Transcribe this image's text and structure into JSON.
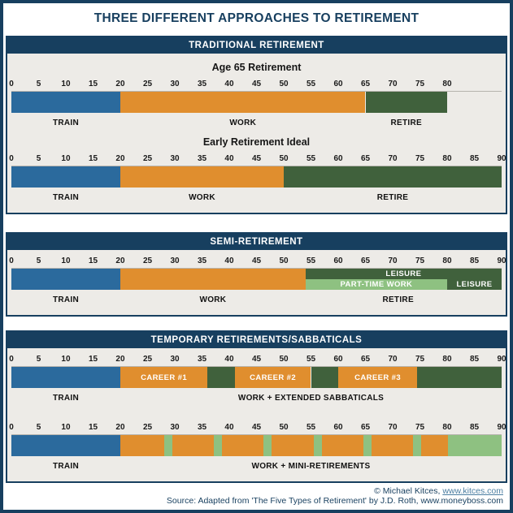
{
  "page": {
    "title": "THREE DIFFERENT APPROACHES TO RETIREMENT",
    "footer_copyright_prefix": "© Michael Kitces, ",
    "footer_link": "www.kitces.com",
    "footer_source": "Source: Adapted from 'The Five Types of Retirement' by J.D. Roth, www.moneyboss.com"
  },
  "colors": {
    "navy": "#173f5f",
    "panel_bg": "#edebe7",
    "axis_line": "#b7b4ae",
    "blue": "#2b6a9d",
    "orange": "#e08e2e",
    "dark_green": "#40613c",
    "light_green": "#8ec181",
    "link": "#4a7da1"
  },
  "chart_data": [
    {
      "section_title": "TRADITIONAL RETIREMENT",
      "charts": [
        {
          "type": "bar",
          "title": "Age 65 Retirement",
          "axis": {
            "min": 0,
            "max": 80,
            "step": 5,
            "scale_max": 90
          },
          "segments": [
            {
              "start": 0,
              "end": 20,
              "color": "blue"
            },
            {
              "start": 20,
              "end": 65,
              "color": "orange"
            },
            {
              "start": 65,
              "end": 80,
              "color": "dark_green"
            }
          ],
          "phase_labels": [
            {
              "text": "TRAIN",
              "at": 10
            },
            {
              "text": "WORK",
              "at": 42.5
            },
            {
              "text": "RETIRE",
              "at": 72.5
            }
          ]
        },
        {
          "type": "bar",
          "title": "Early Retirement Ideal",
          "axis": {
            "min": 0,
            "max": 90,
            "step": 5,
            "scale_max": 90
          },
          "segments": [
            {
              "start": 0,
              "end": 20,
              "color": "blue"
            },
            {
              "start": 20,
              "end": 50,
              "color": "orange"
            },
            {
              "start": 50,
              "end": 90,
              "color": "dark_green"
            }
          ],
          "phase_labels": [
            {
              "text": "TRAIN",
              "at": 10
            },
            {
              "text": "WORK",
              "at": 35
            },
            {
              "text": "RETIRE",
              "at": 70
            }
          ]
        }
      ]
    },
    {
      "section_title": "SEMI-RETIREMENT",
      "charts": [
        {
          "type": "bar",
          "title": "",
          "axis": {
            "min": 0,
            "max": 90,
            "step": 5,
            "scale_max": 90
          },
          "segments": [
            {
              "start": 0,
              "end": 20,
              "color": "blue"
            },
            {
              "start": 20,
              "end": 54,
              "color": "orange"
            },
            {
              "start": 54,
              "end": 90,
              "color": "dark_green",
              "row": "top",
              "label": "LEISURE"
            },
            {
              "start": 54,
              "end": 80,
              "color": "light_green",
              "row": "bottom",
              "label": "PART-TIME WORK"
            },
            {
              "start": 80,
              "end": 90,
              "color": "dark_green",
              "row": "bottom",
              "label": "LEISURE"
            }
          ],
          "phase_labels": [
            {
              "text": "TRAIN",
              "at": 10
            },
            {
              "text": "WORK",
              "at": 37
            },
            {
              "text": "RETIRE",
              "at": 71
            }
          ]
        }
      ]
    },
    {
      "section_title": "TEMPORARY RETIREMENTS/SABBATICALS",
      "charts": [
        {
          "type": "bar",
          "title": "",
          "axis": {
            "min": 0,
            "max": 90,
            "step": 5,
            "scale_max": 90
          },
          "segments": [
            {
              "start": 0,
              "end": 20,
              "color": "blue"
            },
            {
              "start": 20,
              "end": 36,
              "color": "orange",
              "label": "CAREER #1"
            },
            {
              "start": 36,
              "end": 41,
              "color": "dark_green"
            },
            {
              "start": 41,
              "end": 55,
              "color": "orange",
              "label": "CAREER #2"
            },
            {
              "start": 55,
              "end": 60,
              "color": "dark_green"
            },
            {
              "start": 60,
              "end": 74.5,
              "color": "orange",
              "label": "CAREER #3"
            },
            {
              "start": 74.5,
              "end": 90,
              "color": "dark_green"
            }
          ],
          "phase_labels": [
            {
              "text": "TRAIN",
              "at": 10
            },
            {
              "text": "WORK + EXTENDED SABBATICALS",
              "at": 55
            }
          ]
        },
        {
          "type": "bar",
          "title": "",
          "axis": {
            "min": 0,
            "max": 90,
            "step": 5,
            "scale_max": 90
          },
          "segments": [
            {
              "start": 0,
              "end": 20,
              "color": "blue"
            },
            {
              "start": 20,
              "end": 28.1,
              "color": "orange"
            },
            {
              "start": 28.1,
              "end": 29.6,
              "color": "light_green"
            },
            {
              "start": 29.6,
              "end": 37.2,
              "color": "orange"
            },
            {
              "start": 37.2,
              "end": 38.7,
              "color": "light_green"
            },
            {
              "start": 38.7,
              "end": 46.3,
              "color": "orange"
            },
            {
              "start": 46.3,
              "end": 47.8,
              "color": "light_green"
            },
            {
              "start": 47.8,
              "end": 55.5,
              "color": "orange"
            },
            {
              "start": 55.5,
              "end": 57,
              "color": "light_green"
            },
            {
              "start": 57,
              "end": 64.6,
              "color": "orange"
            },
            {
              "start": 64.6,
              "end": 66.1,
              "color": "light_green"
            },
            {
              "start": 66.1,
              "end": 73.7,
              "color": "orange"
            },
            {
              "start": 73.7,
              "end": 75.2,
              "color": "light_green"
            },
            {
              "start": 75.2,
              "end": 80.1,
              "color": "orange"
            },
            {
              "start": 80.1,
              "end": 90,
              "color": "light_green"
            }
          ],
          "phase_labels": [
            {
              "text": "TRAIN",
              "at": 10
            },
            {
              "text": "WORK + MINI-RETIREMENTS",
              "at": 55
            }
          ]
        }
      ]
    }
  ]
}
